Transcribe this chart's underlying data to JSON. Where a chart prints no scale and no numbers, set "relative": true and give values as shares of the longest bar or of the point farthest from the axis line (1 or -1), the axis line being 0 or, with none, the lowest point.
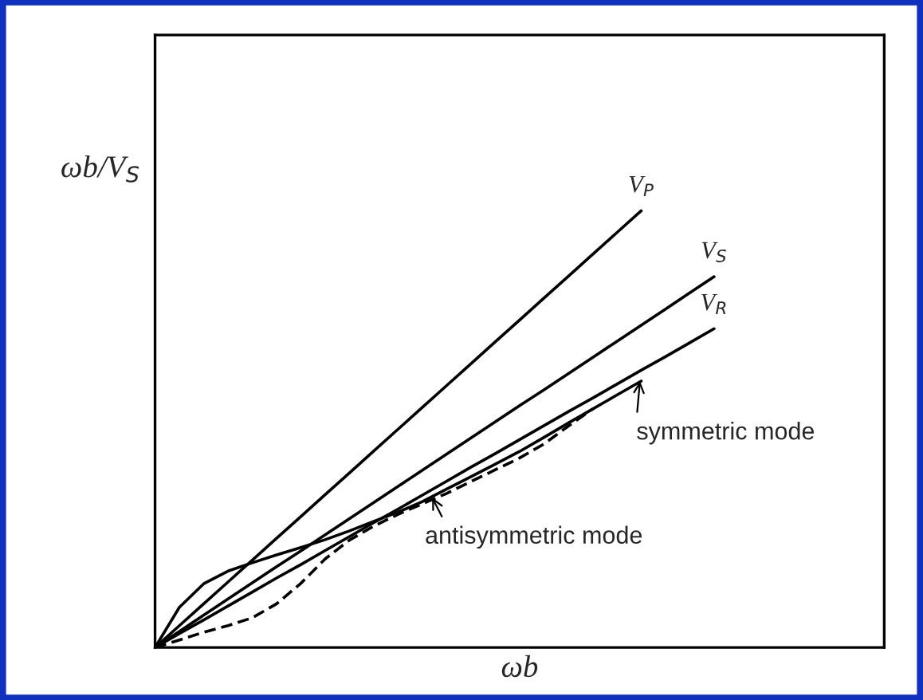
{
  "chart_data": {
    "type": "line",
    "relative": true,
    "xlabel": "ωb",
    "ylabel": "ωb/V$_{S}$",
    "marker": "none",
    "categories": [
      null,
      null,
      null,
      null,
      null,
      null,
      null,
      null,
      null,
      null,
      null,
      null,
      null,
      null,
      null,
      null,
      null,
      null,
      null,
      null,
      null,
      null,
      null,
      null,
      null,
      null,
      null,
      null,
      null,
      null,
      null
    ],
    "series": [
      {
        "name": "V$_{P}$",
        "color": "#000000",
        "line_style": "solid",
        "values": [
          0,
          0.05,
          0.1,
          0.15,
          0.2,
          0.25,
          0.3,
          0.35,
          0.4,
          0.45,
          0.5,
          0.55,
          0.6,
          0.65,
          0.7,
          0.75,
          0.8,
          0.85,
          0.9,
          0.95,
          1.0,
          null,
          null,
          null,
          null,
          null,
          null,
          null,
          null,
          null,
          null
        ]
      },
      {
        "name": "V$_{S}$",
        "color": "#000000",
        "line_style": "solid",
        "values": [
          0,
          0.037,
          0.074,
          0.111,
          0.148,
          0.185,
          0.221,
          0.258,
          0.295,
          0.332,
          0.369,
          0.406,
          0.443,
          0.48,
          0.517,
          0.554,
          0.59,
          0.627,
          0.664,
          0.701,
          0.738,
          0.775,
          0.812,
          0.849,
          null,
          null,
          null,
          null,
          null,
          null,
          null
        ]
      },
      {
        "name": "V$_{R}$",
        "color": "#000000",
        "line_style": "solid",
        "values": [
          0,
          0.032,
          0.063,
          0.095,
          0.127,
          0.159,
          0.19,
          0.222,
          0.254,
          0.286,
          0.317,
          0.349,
          0.381,
          0.413,
          0.444,
          0.476,
          0.508,
          0.54,
          0.571,
          0.603,
          0.635,
          0.666,
          0.698,
          0.73,
          null,
          null,
          null,
          null,
          null,
          null,
          null
        ]
      },
      {
        "color": "#000000",
        "line_style": "solid",
        "values": [
          0,
          0.092,
          0.146,
          0.175,
          0.194,
          0.212,
          0.229,
          0.247,
          0.267,
          0.289,
          0.31,
          0.334,
          0.363,
          0.391,
          0.42,
          0.449,
          0.481,
          0.514,
          0.546,
          0.578,
          0.61,
          null,
          null,
          null,
          null,
          null,
          null,
          null,
          null,
          null,
          null
        ]
      },
      {
        "color": "#000000",
        "line_style": "dashed",
        "values": [
          0,
          0.017,
          0.035,
          0.05,
          0.068,
          0.1,
          0.147,
          0.203,
          0.246,
          0.278,
          0.305,
          0.329,
          0.353,
          0.38,
          0.407,
          0.434,
          0.466,
          0.507,
          0.546,
          null,
          null,
          null,
          null,
          null,
          null,
          null,
          null,
          null,
          null,
          null,
          null
        ]
      }
    ],
    "annotations": [
      "symmetric mode",
      "antisymmetric mode"
    ]
  }
}
